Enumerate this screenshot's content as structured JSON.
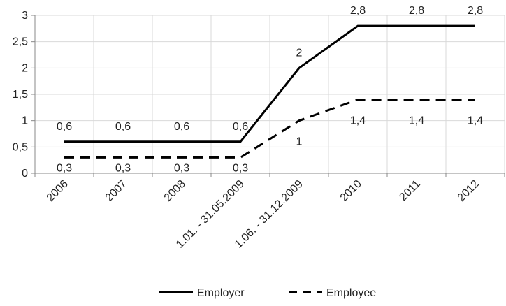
{
  "chart_data": {
    "type": "line",
    "categories": [
      "2006",
      "2007",
      "2008",
      "1.01. - 31.05.2009",
      "1.06. - 31.12.2009",
      "2010",
      "2011",
      "2012"
    ],
    "series": [
      {
        "name": "Employer",
        "values": [
          0.6,
          0.6,
          0.6,
          0.6,
          2,
          2.8,
          2.8,
          2.8
        ],
        "labels": [
          "0,6",
          "0,6",
          "0,6",
          "0,6",
          "2",
          "2,8",
          "2,8",
          "2,8"
        ],
        "color": "#000000",
        "dash": "solid"
      },
      {
        "name": "Employee",
        "values": [
          0.3,
          0.3,
          0.3,
          0.3,
          1,
          1.4,
          1.4,
          1.4
        ],
        "labels": [
          "0,3",
          "0,3",
          "0,3",
          "0,3",
          "1",
          "1,4",
          "1,4",
          "1,4"
        ],
        "color": "#000000",
        "dash": "dashed"
      }
    ],
    "y_ticks": [
      {
        "value": 0,
        "label": "0"
      },
      {
        "value": 0.5,
        "label": "0,5"
      },
      {
        "value": 1,
        "label": "1"
      },
      {
        "value": 1.5,
        "label": "1,5"
      },
      {
        "value": 2,
        "label": "2"
      },
      {
        "value": 2.5,
        "label": "2,5"
      },
      {
        "value": 3,
        "label": "3"
      }
    ],
    "ylim": [
      0,
      3
    ],
    "grid": true,
    "grid_color": "#d9d9d9",
    "legend_position": "bottom",
    "title": "",
    "xlabel": "",
    "ylabel": ""
  }
}
